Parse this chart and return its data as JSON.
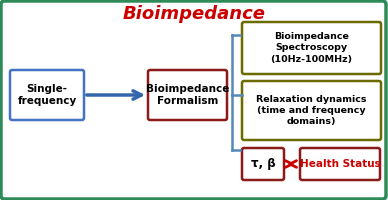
{
  "title": "Bioimpedance",
  "title_color": "#CC0000",
  "title_fontsize": 13,
  "bg_border_color": "#2e8b57",
  "box1_text": "Single-\nfrequency",
  "box1_border": "#4472C4",
  "box2_text": "Bioimpedance\nFormalism",
  "box2_border": "#8B1A1A",
  "box3_text": "Bioimpedance\nSpectroscopy\n(10Hz-100MHz)",
  "box3_border": "#6B6B00",
  "box4_text": "Relaxation dynamics\n(time and frequency\ndomains)",
  "box4_border": "#6B6B00",
  "box5_text": "τ, β",
  "box5_border": "#8B1A1A",
  "box6_text": "Health Status",
  "box6_color": "#CC0000",
  "box6_border": "#8B1A1A",
  "arrow_color": "#3366AA",
  "double_arrow_color": "#CC0000",
  "brace_color": "#5588BB",
  "text_color": "black"
}
